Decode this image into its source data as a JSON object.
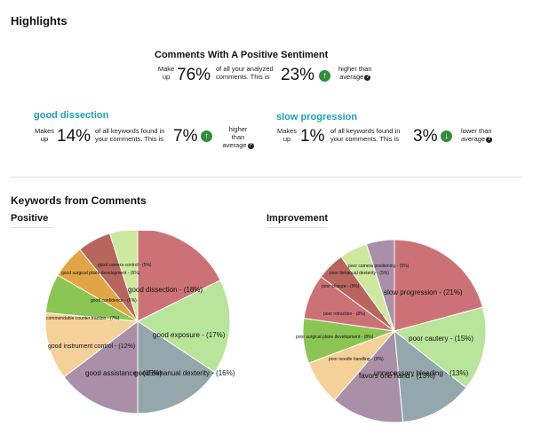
{
  "highlights": {
    "title": "Highlights",
    "positive": {
      "title": "Comments With A Positive Sentiment",
      "makes": "Make",
      "up": "up",
      "pct": "76%",
      "desc1": "of all your analyzed",
      "desc2": "comments. This is",
      "delta": "23%",
      "rel1": "higher than",
      "rel2": "average"
    },
    "left": {
      "keyword": "good dissection",
      "makes": "Makes",
      "up": "up",
      "pct": "14%",
      "desc1": "of all keywords found in",
      "desc2": "your comments. This is",
      "delta": "7%",
      "rel1": "higher",
      "rel2": "than",
      "rel3": "average"
    },
    "right": {
      "keyword": "slow progression",
      "makes": "Makes",
      "up": "up",
      "pct": "1%",
      "desc1": "of all keywords found in",
      "desc2": "your comments. This is",
      "delta": "3%",
      "rel1": "lower than",
      "rel2": "average"
    }
  },
  "keywords": {
    "title": "Keywords from Comments",
    "positive_label": "Positive",
    "improvement_label": "Improvement"
  },
  "chart_data": [
    {
      "type": "pie",
      "title": "Positive",
      "slices": [
        {
          "label": "good dissection - (18%)",
          "value": 18,
          "color": "#cc7276"
        },
        {
          "label": "good exposure - (17%)",
          "value": 17,
          "color": "#b8e59a"
        },
        {
          "label": "good bimanual dexterity - (16%)",
          "value": 16,
          "color": "#93a7ac"
        },
        {
          "label": "good assistance - (15%)",
          "value": 15,
          "color": "#a98fa8"
        },
        {
          "label": "good instrument control - (12%)",
          "value": 12,
          "color": "#f5d19a"
        },
        {
          "label": "commendable counter traction - (7%)",
          "value": 7,
          "color": "#8bc553"
        },
        {
          "label": "good confidence - (6%)",
          "value": 6,
          "color": "#e2a545"
        },
        {
          "label": "good surgical plane development - (6%)",
          "value": 6,
          "color": "#b8665d"
        },
        {
          "label": "good camera control - (5%)",
          "value": 5,
          "color": "#cde9a0"
        }
      ]
    },
    {
      "type": "pie",
      "title": "Improvement",
      "slices": [
        {
          "label": "slow progression - (21%)",
          "value": 21,
          "color": "#cc7276"
        },
        {
          "label": "poor cautery - (15%)",
          "value": 15,
          "color": "#b8e59a"
        },
        {
          "label": "unnecessary bleeding - (13%)",
          "value": 13,
          "color": "#93a7ac"
        },
        {
          "label": "favors one hand - (13%)",
          "value": 13,
          "color": "#a98fa8"
        },
        {
          "label": "poor needle handling - (8%)",
          "value": 8,
          "color": "#f5d19a"
        },
        {
          "label": "poor surgical plane development - (8%)",
          "value": 8,
          "color": "#8bc553"
        },
        {
          "label": "poor retraction - (8%)",
          "value": 8,
          "color": "#cc7276"
        },
        {
          "label": "poor closure - (5%)",
          "value": 5,
          "color": "#b8665d"
        },
        {
          "label": "poor bimanual dexterity - (5%)",
          "value": 5,
          "color": "#cde9a0"
        },
        {
          "label": "poor camera positioning - (5%)",
          "value": 5,
          "color": "#a98fa8"
        }
      ]
    }
  ]
}
